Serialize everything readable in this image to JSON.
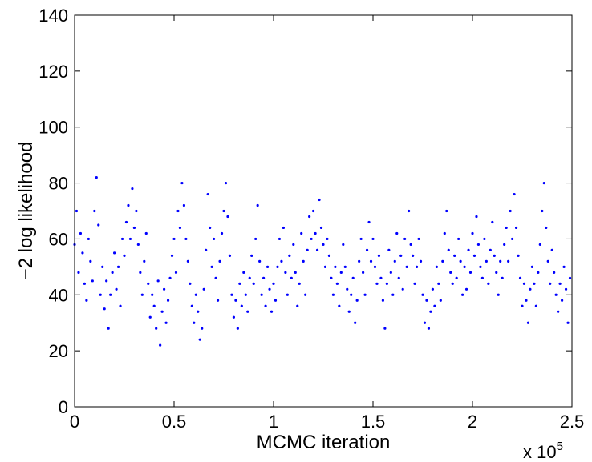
{
  "chart_data": {
    "type": "scatter",
    "xlabel": "MCMC iteration",
    "ylabel": "−2 log likelihood",
    "xlim": [
      0,
      2.5
    ],
    "ylim": [
      0,
      140
    ],
    "x_scale_label": "x 10",
    "x_scale_exponent": "5",
    "x_ticks": [
      "0",
      "0.5",
      "1",
      "1.5",
      "2",
      "2.5"
    ],
    "y_ticks": [
      "0",
      "20",
      "40",
      "60",
      "80",
      "100",
      "120",
      "140"
    ],
    "grid": false,
    "legend": "none",
    "marker_color": "#0000ff",
    "series": [
      {
        "points": [
          [
            0.0,
            58
          ],
          [
            0.01,
            70
          ],
          [
            0.02,
            48
          ],
          [
            0.03,
            62
          ],
          [
            0.04,
            55
          ],
          [
            0.05,
            44
          ],
          [
            0.06,
            38
          ],
          [
            0.07,
            60
          ],
          [
            0.08,
            52
          ],
          [
            0.09,
            45
          ],
          [
            0.1,
            70
          ],
          [
            0.11,
            82
          ],
          [
            0.12,
            65
          ],
          [
            0.13,
            40
          ],
          [
            0.14,
            50
          ],
          [
            0.15,
            35
          ],
          [
            0.16,
            45
          ],
          [
            0.17,
            28
          ],
          [
            0.18,
            40
          ],
          [
            0.19,
            48
          ],
          [
            0.2,
            55
          ],
          [
            0.21,
            42
          ],
          [
            0.22,
            50
          ],
          [
            0.23,
            36
          ],
          [
            0.24,
            60
          ],
          [
            0.25,
            54
          ],
          [
            0.26,
            66
          ],
          [
            0.27,
            72
          ],
          [
            0.28,
            60
          ],
          [
            0.29,
            78
          ],
          [
            0.3,
            64
          ],
          [
            0.31,
            70
          ],
          [
            0.32,
            58
          ],
          [
            0.33,
            48
          ],
          [
            0.34,
            40
          ],
          [
            0.35,
            52
          ],
          [
            0.36,
            62
          ],
          [
            0.37,
            44
          ],
          [
            0.38,
            32
          ],
          [
            0.39,
            40
          ],
          [
            0.4,
            36
          ],
          [
            0.41,
            28
          ],
          [
            0.42,
            45
          ],
          [
            0.43,
            22
          ],
          [
            0.44,
            34
          ],
          [
            0.45,
            42
          ],
          [
            0.46,
            30
          ],
          [
            0.47,
            38
          ],
          [
            0.48,
            46
          ],
          [
            0.49,
            54
          ],
          [
            0.5,
            60
          ],
          [
            0.51,
            48
          ],
          [
            0.52,
            70
          ],
          [
            0.53,
            64
          ],
          [
            0.54,
            80
          ],
          [
            0.55,
            72
          ],
          [
            0.56,
            60
          ],
          [
            0.57,
            52
          ],
          [
            0.58,
            44
          ],
          [
            0.59,
            36
          ],
          [
            0.6,
            30
          ],
          [
            0.61,
            40
          ],
          [
            0.62,
            34
          ],
          [
            0.63,
            24
          ],
          [
            0.64,
            28
          ],
          [
            0.65,
            42
          ],
          [
            0.66,
            56
          ],
          [
            0.67,
            76
          ],
          [
            0.68,
            64
          ],
          [
            0.69,
            50
          ],
          [
            0.7,
            60
          ],
          [
            0.71,
            46
          ],
          [
            0.72,
            38
          ],
          [
            0.73,
            52
          ],
          [
            0.74,
            62
          ],
          [
            0.75,
            70
          ],
          [
            0.76,
            80
          ],
          [
            0.77,
            68
          ],
          [
            0.78,
            54
          ],
          [
            0.79,
            40
          ],
          [
            0.8,
            32
          ],
          [
            0.81,
            38
          ],
          [
            0.82,
            28
          ],
          [
            0.83,
            44
          ],
          [
            0.84,
            36
          ],
          [
            0.85,
            48
          ],
          [
            0.86,
            40
          ],
          [
            0.87,
            34
          ],
          [
            0.88,
            46
          ],
          [
            0.89,
            54
          ],
          [
            0.9,
            44
          ],
          [
            0.91,
            60
          ],
          [
            0.92,
            72
          ],
          [
            0.93,
            52
          ],
          [
            0.94,
            40
          ],
          [
            0.95,
            46
          ],
          [
            0.96,
            36
          ],
          [
            0.97,
            50
          ],
          [
            0.98,
            42
          ],
          [
            0.99,
            34
          ],
          [
            1.0,
            44
          ],
          [
            1.01,
            38
          ],
          [
            1.02,
            50
          ],
          [
            1.03,
            60
          ],
          [
            1.04,
            52
          ],
          [
            1.05,
            64
          ],
          [
            1.06,
            48
          ],
          [
            1.07,
            40
          ],
          [
            1.08,
            54
          ],
          [
            1.09,
            46
          ],
          [
            1.1,
            58
          ],
          [
            1.11,
            48
          ],
          [
            1.12,
            36
          ],
          [
            1.13,
            44
          ],
          [
            1.14,
            62
          ],
          [
            1.15,
            52
          ],
          [
            1.16,
            40
          ],
          [
            1.17,
            56
          ],
          [
            1.18,
            68
          ],
          [
            1.19,
            60
          ],
          [
            1.2,
            70
          ],
          [
            1.21,
            62
          ],
          [
            1.22,
            56
          ],
          [
            1.23,
            74
          ],
          [
            1.24,
            64
          ],
          [
            1.25,
            58
          ],
          [
            1.26,
            50
          ],
          [
            1.27,
            60
          ],
          [
            1.28,
            54
          ],
          [
            1.29,
            46
          ],
          [
            1.3,
            40
          ],
          [
            1.31,
            50
          ],
          [
            1.32,
            44
          ],
          [
            1.33,
            36
          ],
          [
            1.34,
            48
          ],
          [
            1.35,
            58
          ],
          [
            1.36,
            50
          ],
          [
            1.37,
            42
          ],
          [
            1.38,
            34
          ],
          [
            1.39,
            40
          ],
          [
            1.4,
            46
          ],
          [
            1.41,
            30
          ],
          [
            1.42,
            38
          ],
          [
            1.43,
            52
          ],
          [
            1.44,
            60
          ],
          [
            1.45,
            48
          ],
          [
            1.46,
            40
          ],
          [
            1.47,
            56
          ],
          [
            1.48,
            66
          ],
          [
            1.49,
            52
          ],
          [
            1.5,
            60
          ],
          [
            1.51,
            50
          ],
          [
            1.52,
            44
          ],
          [
            1.53,
            54
          ],
          [
            1.54,
            46
          ],
          [
            1.55,
            38
          ],
          [
            1.56,
            28
          ],
          [
            1.57,
            44
          ],
          [
            1.58,
            56
          ],
          [
            1.59,
            48
          ],
          [
            1.6,
            40
          ],
          [
            1.61,
            52
          ],
          [
            1.62,
            62
          ],
          [
            1.63,
            46
          ],
          [
            1.64,
            54
          ],
          [
            1.65,
            42
          ],
          [
            1.66,
            60
          ],
          [
            1.67,
            50
          ],
          [
            1.68,
            70
          ],
          [
            1.69,
            58
          ],
          [
            1.7,
            54
          ],
          [
            1.71,
            44
          ],
          [
            1.72,
            50
          ],
          [
            1.73,
            60
          ],
          [
            1.74,
            52
          ],
          [
            1.75,
            40
          ],
          [
            1.76,
            30
          ],
          [
            1.77,
            38
          ],
          [
            1.78,
            28
          ],
          [
            1.79,
            34
          ],
          [
            1.8,
            42
          ],
          [
            1.81,
            36
          ],
          [
            1.82,
            50
          ],
          [
            1.83,
            44
          ],
          [
            1.84,
            38
          ],
          [
            1.85,
            52
          ],
          [
            1.86,
            62
          ],
          [
            1.87,
            70
          ],
          [
            1.88,
            56
          ],
          [
            1.89,
            48
          ],
          [
            1.9,
            44
          ],
          [
            1.91,
            54
          ],
          [
            1.92,
            46
          ],
          [
            1.93,
            60
          ],
          [
            1.94,
            52
          ],
          [
            1.95,
            40
          ],
          [
            1.96,
            50
          ],
          [
            1.97,
            42
          ],
          [
            1.98,
            56
          ],
          [
            1.99,
            48
          ],
          [
            2.0,
            62
          ],
          [
            2.01,
            54
          ],
          [
            2.02,
            68
          ],
          [
            2.03,
            58
          ],
          [
            2.04,
            50
          ],
          [
            2.05,
            46
          ],
          [
            2.06,
            60
          ],
          [
            2.07,
            52
          ],
          [
            2.08,
            44
          ],
          [
            2.09,
            56
          ],
          [
            2.1,
            66
          ],
          [
            2.11,
            54
          ],
          [
            2.12,
            48
          ],
          [
            2.13,
            40
          ],
          [
            2.14,
            52
          ],
          [
            2.15,
            46
          ],
          [
            2.16,
            58
          ],
          [
            2.17,
            64
          ],
          [
            2.18,
            52
          ],
          [
            2.19,
            70
          ],
          [
            2.2,
            60
          ],
          [
            2.21,
            76
          ],
          [
            2.22,
            64
          ],
          [
            2.23,
            54
          ],
          [
            2.24,
            46
          ],
          [
            2.25,
            36
          ],
          [
            2.26,
            44
          ],
          [
            2.27,
            38
          ],
          [
            2.28,
            30
          ],
          [
            2.29,
            42
          ],
          [
            2.3,
            50
          ],
          [
            2.31,
            44
          ],
          [
            2.32,
            36
          ],
          [
            2.33,
            48
          ],
          [
            2.34,
            58
          ],
          [
            2.35,
            70
          ],
          [
            2.36,
            80
          ],
          [
            2.37,
            64
          ],
          [
            2.38,
            52
          ],
          [
            2.39,
            44
          ],
          [
            2.4,
            56
          ],
          [
            2.41,
            48
          ],
          [
            2.42,
            40
          ],
          [
            2.43,
            34
          ],
          [
            2.44,
            44
          ],
          [
            2.45,
            38
          ],
          [
            2.46,
            50
          ],
          [
            2.47,
            42
          ],
          [
            2.48,
            30
          ],
          [
            2.49,
            46
          ]
        ]
      }
    ]
  }
}
